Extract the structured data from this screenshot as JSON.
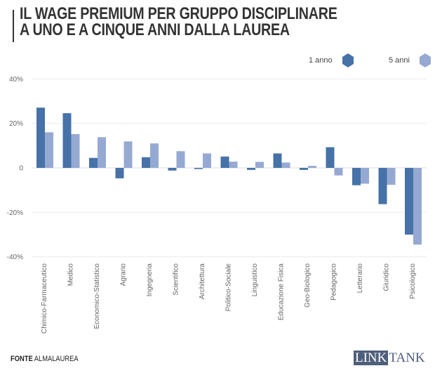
{
  "header": {
    "title_line1": "IL WAGE PREMIUM PER GRUPPO DISCIPLINARE",
    "title_line2": "A UNO E A CINQUE ANNI DALLA LAUREA"
  },
  "legend": [
    {
      "label": "1 anno",
      "color": "#4672a8",
      "icon": "hexagon-icon"
    },
    {
      "label": "5 anni",
      "color": "#95a9d2",
      "icon": "hexagon-icon"
    }
  ],
  "footer": {
    "source_label": "FONTE",
    "source_value": "ALMALAUREA",
    "logo_part1": "LINK",
    "logo_part2": "TANK"
  },
  "chart_data": {
    "type": "bar",
    "title": "IL WAGE PREMIUM PER GRUPPO DISCIPLINARE A UNO E A CINQUE ANNI DALLA LAUREA",
    "xlabel": "",
    "ylabel": "",
    "ylim": [
      -40,
      40
    ],
    "yticks": [
      40,
      20,
      0,
      -20,
      -40
    ],
    "ytick_labels": [
      "40%",
      "20%",
      "0",
      "-20%",
      "-40%"
    ],
    "grid": true,
    "legend_position": "top-right",
    "categories": [
      "Chimico-Farmaceutico",
      "Medico",
      "Economico-Statistico",
      "Agrario",
      "Ingegneria",
      "Scientifico",
      "Architettura",
      "Politico-Sociale",
      "Linguistico",
      "Educazione Fisica",
      "Geo-Biologico",
      "Pedagogico",
      "Letterario",
      "Giuridico",
      "Psicologico"
    ],
    "series": [
      {
        "name": "1 anno",
        "color": "#4672a8",
        "values": [
          27.1,
          24.6,
          4.5,
          -4.7,
          4.8,
          -1.2,
          -0.5,
          5.1,
          -0.9,
          6.5,
          -0.9,
          9.3,
          -7.8,
          -16.3,
          -30.0
        ]
      },
      {
        "name": "5 anni",
        "color": "#95a9d2",
        "values": [
          16.0,
          15.2,
          13.8,
          11.9,
          11.0,
          7.5,
          6.5,
          2.8,
          2.7,
          2.4,
          0.9,
          -3.4,
          -7.1,
          -7.6,
          -34.5
        ]
      }
    ]
  }
}
